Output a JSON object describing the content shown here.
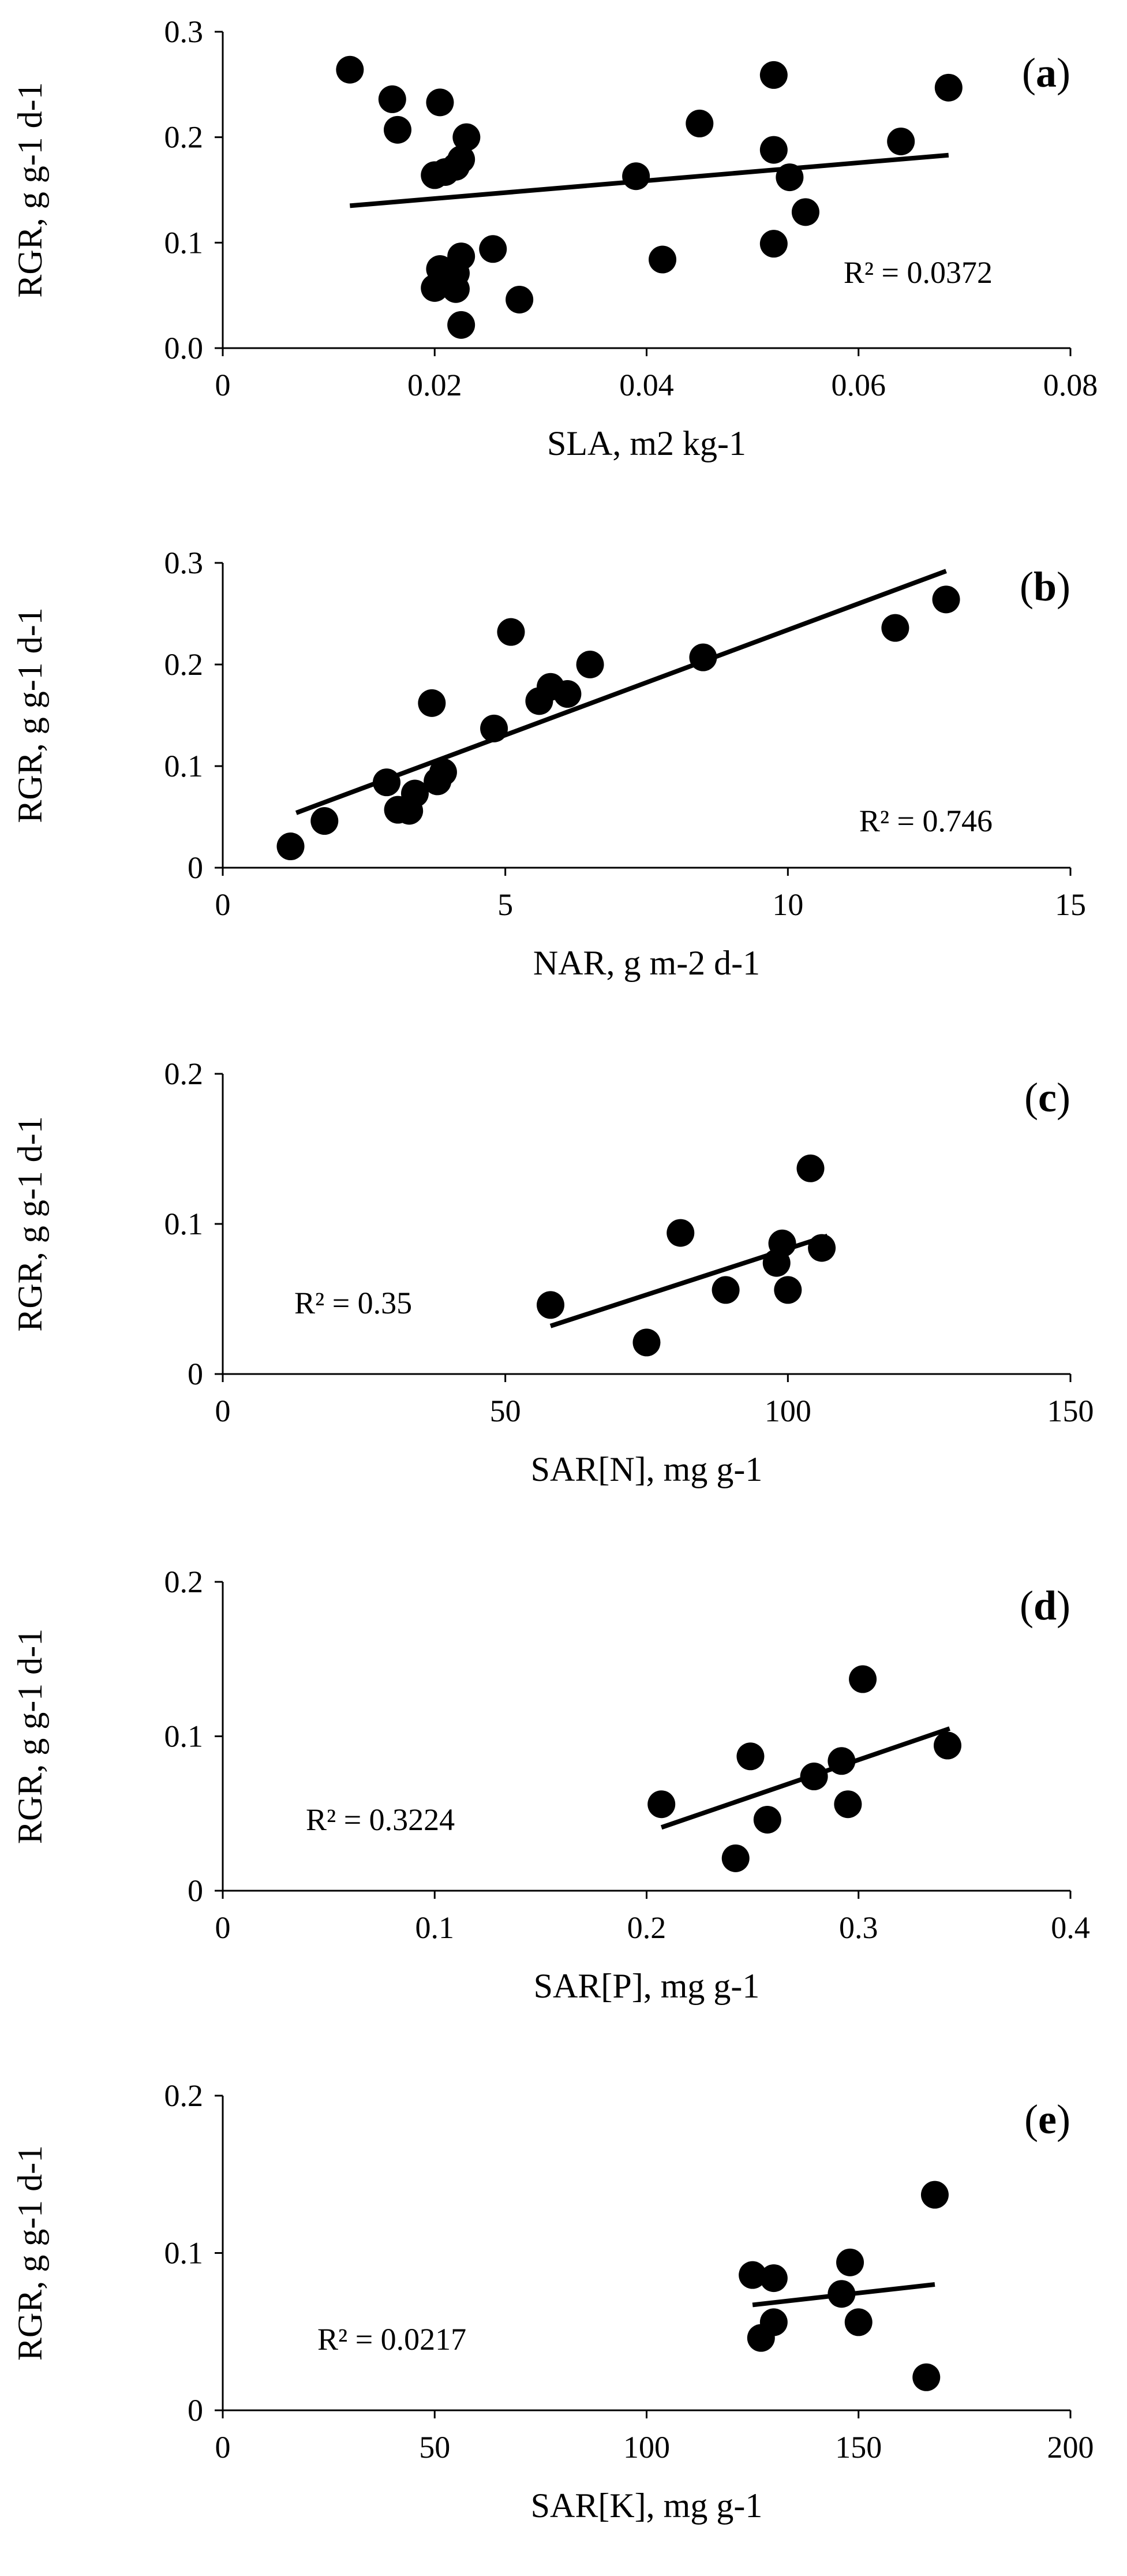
{
  "chart_data": [
    {
      "type": "scatter",
      "panel": "a",
      "ylabel": "RGR, g g-1 d-1",
      "xlabel": "SLA, m2 kg-1",
      "xlim": [
        0,
        0.08
      ],
      "ylim": [
        0,
        0.3
      ],
      "xticks": [
        "0",
        "0.02",
        "0.04",
        "0.06",
        "0.08"
      ],
      "yticks": [
        "0.0",
        "0.1",
        "0.2",
        "0.3"
      ],
      "r2": "R² = 0.0372",
      "trendline": {
        "x": [
          0.012,
          0.0685
        ],
        "y": [
          0.135,
          0.183
        ]
      },
      "points": [
        {
          "x": 0.012,
          "y": 0.264
        },
        {
          "x": 0.016,
          "y": 0.236
        },
        {
          "x": 0.0165,
          "y": 0.207
        },
        {
          "x": 0.0205,
          "y": 0.233
        },
        {
          "x": 0.02,
          "y": 0.164
        },
        {
          "x": 0.021,
          "y": 0.167
        },
        {
          "x": 0.022,
          "y": 0.172
        },
        {
          "x": 0.023,
          "y": 0.2
        },
        {
          "x": 0.0225,
          "y": 0.179
        },
        {
          "x": 0.0205,
          "y": 0.075
        },
        {
          "x": 0.022,
          "y": 0.071
        },
        {
          "x": 0.0225,
          "y": 0.087
        },
        {
          "x": 0.0255,
          "y": 0.094
        },
        {
          "x": 0.02,
          "y": 0.057
        },
        {
          "x": 0.022,
          "y": 0.056
        },
        {
          "x": 0.0225,
          "y": 0.022
        },
        {
          "x": 0.028,
          "y": 0.046
        },
        {
          "x": 0.039,
          "y": 0.163
        },
        {
          "x": 0.0415,
          "y": 0.084
        },
        {
          "x": 0.045,
          "y": 0.213
        },
        {
          "x": 0.052,
          "y": 0.259
        },
        {
          "x": 0.052,
          "y": 0.188
        },
        {
          "x": 0.0535,
          "y": 0.162
        },
        {
          "x": 0.052,
          "y": 0.099
        },
        {
          "x": 0.055,
          "y": 0.129
        },
        {
          "x": 0.064,
          "y": 0.196
        },
        {
          "x": 0.0685,
          "y": 0.247
        }
      ]
    },
    {
      "type": "scatter",
      "panel": "b",
      "ylabel": "RGR, g g-1 d-1",
      "xlabel": "NAR, g m-2 d-1",
      "xlim": [
        0,
        15
      ],
      "ylim": [
        0,
        0.3
      ],
      "xticks": [
        "0",
        "5",
        "10",
        "15"
      ],
      "yticks": [
        "0",
        "0.1",
        "0.2",
        "0.3"
      ],
      "r2": "R² = 0.746",
      "trendline": {
        "x": [
          1.3,
          12.8
        ],
        "y": [
          0.054,
          0.292
        ]
      },
      "points": [
        {
          "x": 1.2,
          "y": 0.021
        },
        {
          "x": 1.8,
          "y": 0.046
        },
        {
          "x": 2.9,
          "y": 0.084
        },
        {
          "x": 3.1,
          "y": 0.057
        },
        {
          "x": 3.3,
          "y": 0.056
        },
        {
          "x": 3.4,
          "y": 0.073
        },
        {
          "x": 3.8,
          "y": 0.085
        },
        {
          "x": 3.9,
          "y": 0.094
        },
        {
          "x": 3.7,
          "y": 0.162
        },
        {
          "x": 4.8,
          "y": 0.137
        },
        {
          "x": 5.1,
          "y": 0.232
        },
        {
          "x": 5.6,
          "y": 0.164
        },
        {
          "x": 5.8,
          "y": 0.178
        },
        {
          "x": 6.1,
          "y": 0.171
        },
        {
          "x": 6.5,
          "y": 0.2
        },
        {
          "x": 8.5,
          "y": 0.207
        },
        {
          "x": 11.9,
          "y": 0.236
        },
        {
          "x": 12.8,
          "y": 0.264
        }
      ]
    },
    {
      "type": "scatter",
      "panel": "c",
      "ylabel": "RGR, g g-1 d-1",
      "xlabel": "SAR[N], mg g-1",
      "xlim": [
        0,
        150
      ],
      "ylim": [
        0,
        0.2
      ],
      "xticks": [
        "0",
        "50",
        "100",
        "150"
      ],
      "yticks": [
        "0",
        "0.1",
        "0.2"
      ],
      "r2": "R² = 0.35",
      "trendline": {
        "x": [
          58,
          107
        ],
        "y": [
          0.032,
          0.092
        ]
      },
      "points": [
        {
          "x": 58,
          "y": 0.046
        },
        {
          "x": 75,
          "y": 0.021
        },
        {
          "x": 81,
          "y": 0.094
        },
        {
          "x": 89,
          "y": 0.056
        },
        {
          "x": 98,
          "y": 0.074
        },
        {
          "x": 99,
          "y": 0.087
        },
        {
          "x": 100,
          "y": 0.056
        },
        {
          "x": 104,
          "y": 0.137
        },
        {
          "x": 106,
          "y": 0.084
        }
      ]
    },
    {
      "type": "scatter",
      "panel": "d",
      "ylabel": "RGR, g g-1 d-1",
      "xlabel": "SAR[P], mg g-1",
      "xlim": [
        0,
        0.4
      ],
      "ylim": [
        0,
        0.2
      ],
      "xticks": [
        "0",
        "0.1",
        "0.2",
        "0.3",
        "0.4"
      ],
      "yticks": [
        "0",
        "0.1",
        "0.2"
      ],
      "r2": "R² = 0.3224",
      "trendline": {
        "x": [
          0.207,
          0.343
        ],
        "y": [
          0.041,
          0.105
        ]
      },
      "points": [
        {
          "x": 0.207,
          "y": 0.056
        },
        {
          "x": 0.242,
          "y": 0.021
        },
        {
          "x": 0.249,
          "y": 0.087
        },
        {
          "x": 0.257,
          "y": 0.046
        },
        {
          "x": 0.279,
          "y": 0.074
        },
        {
          "x": 0.292,
          "y": 0.084
        },
        {
          "x": 0.295,
          "y": 0.056
        },
        {
          "x": 0.302,
          "y": 0.137
        },
        {
          "x": 0.342,
          "y": 0.094
        }
      ]
    },
    {
      "type": "scatter",
      "panel": "e",
      "ylabel": "RGR, g g-1 d-1",
      "xlabel": "SAR[K], mg g-1",
      "xlim": [
        0,
        200
      ],
      "ylim": [
        0,
        0.2
      ],
      "xticks": [
        "0",
        "50",
        "100",
        "150",
        "200"
      ],
      "yticks": [
        "0",
        "0.1",
        "0.2"
      ],
      "r2": "R² = 0.0217",
      "trendline": {
        "x": [
          125,
          168
        ],
        "y": [
          0.067,
          0.08
        ]
      },
      "points": [
        {
          "x": 125,
          "y": 0.086
        },
        {
          "x": 127,
          "y": 0.046
        },
        {
          "x": 130,
          "y": 0.084
        },
        {
          "x": 130,
          "y": 0.056
        },
        {
          "x": 146,
          "y": 0.074
        },
        {
          "x": 148,
          "y": 0.094
        },
        {
          "x": 150,
          "y": 0.056
        },
        {
          "x": 166,
          "y": 0.021
        },
        {
          "x": 168,
          "y": 0.137
        }
      ]
    }
  ]
}
